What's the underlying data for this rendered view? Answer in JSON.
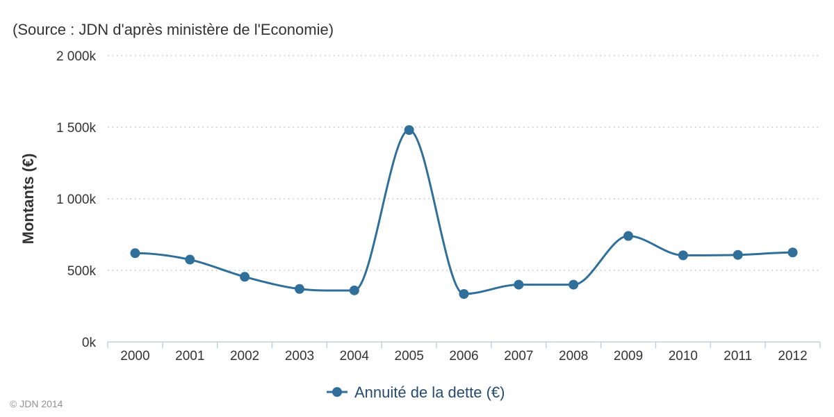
{
  "source": "(Source : JDN d'après ministère de l'Economie)",
  "credit": "© JDN 2014",
  "colors": {
    "series": "#2f6f99",
    "gridline": "#c0c0c0",
    "axis": "#c0d0e0",
    "text": "#333333",
    "legend_text": "#274b6d"
  },
  "chart_data": {
    "type": "line",
    "title": "",
    "subtitle": "(Source : JDN d'après ministère de l'Economie)",
    "xlabel": "",
    "ylabel": "Montants (€)",
    "categories": [
      "2000",
      "2001",
      "2002",
      "2003",
      "2004",
      "2005",
      "2006",
      "2007",
      "2008",
      "2009",
      "2010",
      "2011",
      "2012"
    ],
    "series": [
      {
        "name": "Annuité de la dette (€)",
        "values": [
          620000,
          575000,
          455000,
          370000,
          360000,
          1480000,
          335000,
          400000,
          400000,
          740000,
          605000,
          608000,
          625000
        ]
      }
    ],
    "ylim": [
      0,
      2000000
    ],
    "yticks": [
      {
        "value": 0,
        "label": "0k"
      },
      {
        "value": 500000,
        "label": "500k"
      },
      {
        "value": 1000000,
        "label": "1 000k"
      },
      {
        "value": 1500000,
        "label": "1 500k"
      },
      {
        "value": 2000000,
        "label": "2 000k"
      }
    ],
    "grid": true,
    "smooth": true,
    "legend_position": "bottom-center"
  }
}
